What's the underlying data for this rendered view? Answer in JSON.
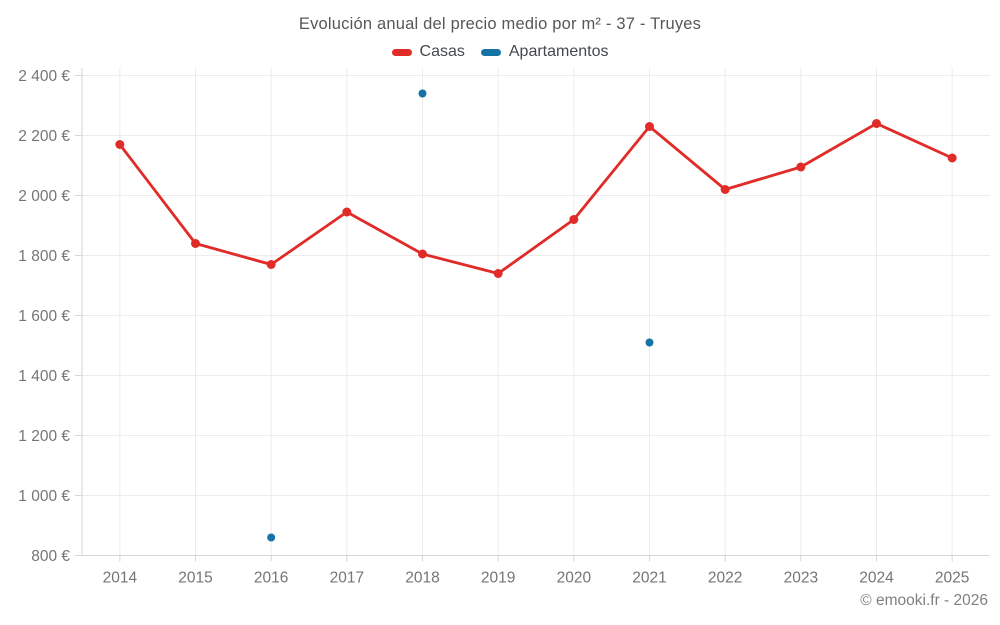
{
  "chart_data": {
    "type": "line",
    "title": "Evolución anual del precio medio por m² - 37 - Truyes",
    "footer": "© emooki.fr - 2026",
    "categories": [
      "2014",
      "2015",
      "2016",
      "2017",
      "2018",
      "2019",
      "2020",
      "2021",
      "2022",
      "2023",
      "2024",
      "2025"
    ],
    "series": [
      {
        "name": "Casas",
        "color": "#e02b28",
        "draw_line": true,
        "marker_radius": 4.5,
        "values": [
          2170,
          1840,
          1770,
          1945,
          1805,
          1740,
          1920,
          2230,
          2020,
          2095,
          2240,
          2125
        ]
      },
      {
        "name": "Apartamentos",
        "color": "#1573a5",
        "draw_line": true,
        "marker_radius": 4,
        "values": [
          null,
          null,
          860,
          null,
          2340,
          null,
          null,
          1510,
          null,
          null,
          null,
          null
        ]
      }
    ],
    "ylim": [
      800,
      2400
    ],
    "ytick_step": 200,
    "ytick_suffix": " €",
    "grid": true,
    "legend_position": "top",
    "colors": {
      "grid": "#ececec",
      "axis": "#d6d6d6",
      "tick_label": "#757575"
    }
  }
}
